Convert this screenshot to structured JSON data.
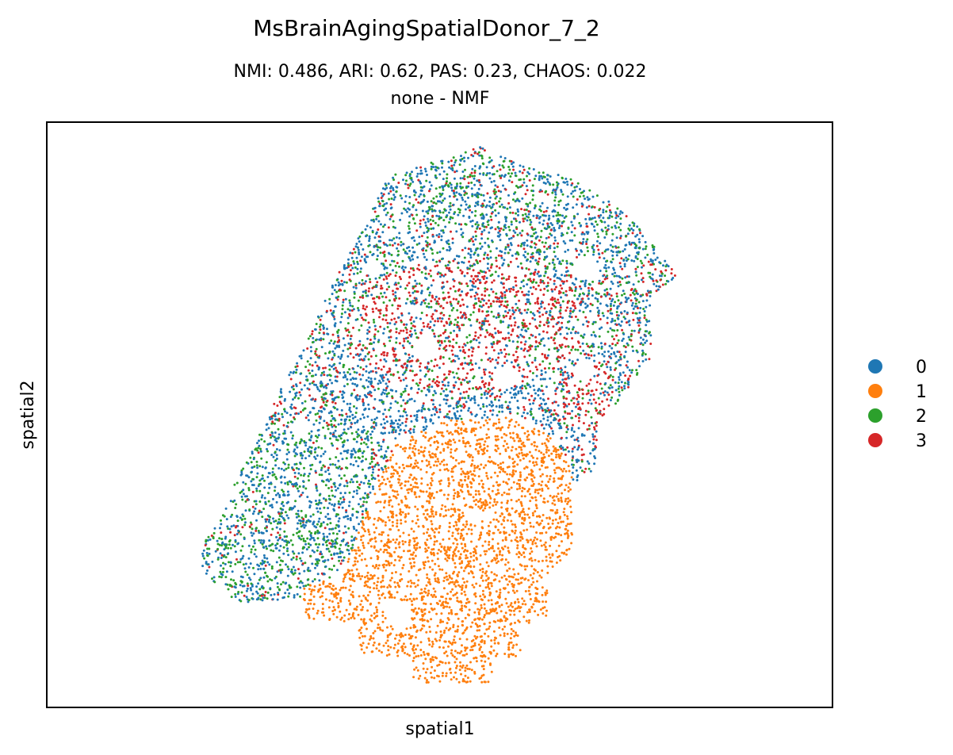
{
  "chart_data": {
    "type": "scatter",
    "title": "MsBrainAgingSpatialDonor_7_2",
    "subtitle_line1": "NMI: 0.486,  ARI: 0.62,  PAS: 0.23,  CHAOS: 0.022",
    "subtitle_line2": "none - NMF",
    "xlabel": "spatial1",
    "ylabel": "spatial2",
    "grid": false,
    "legend_position": "right",
    "legend": [
      {
        "label": "0",
        "color": "#1f77b4"
      },
      {
        "label": "1",
        "color": "#ff7f0e"
      },
      {
        "label": "2",
        "color": "#2ca02c"
      },
      {
        "label": "3",
        "color": "#d62728"
      }
    ],
    "clusters": [
      {
        "name": "0",
        "color": "#1f77b4",
        "approx_region": "upper-left lobe, left arm and band above cluster 1"
      },
      {
        "name": "1",
        "color": "#ff7f0e",
        "approx_region": "lower-center bulb"
      },
      {
        "name": "2",
        "color": "#2ca02c",
        "approx_region": "left arm and upper rim, interspersed"
      },
      {
        "name": "3",
        "color": "#d62728",
        "approx_region": "upper-center core"
      }
    ]
  }
}
